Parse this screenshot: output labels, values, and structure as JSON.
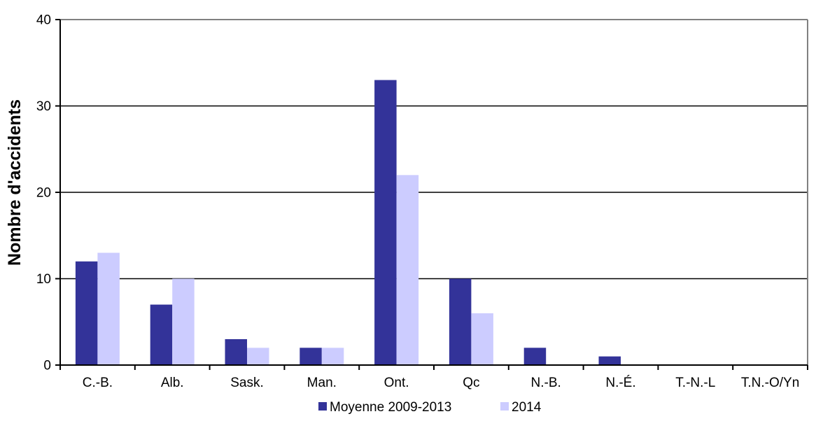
{
  "chart_data": {
    "type": "bar",
    "title": "",
    "xlabel": "",
    "ylabel": "Nombre d'accidents",
    "ylim": [
      0,
      40
    ],
    "yticks": [
      0,
      10,
      20,
      30,
      40
    ],
    "grid": true,
    "legend_position": "bottom",
    "categories": [
      "C.-B.",
      "Alb.",
      "Sask.",
      "Man.",
      "Ont.",
      "Qc",
      "N.-B.",
      "N.-É.",
      "T.-N.-L",
      "T.N.-O/Yn"
    ],
    "series": [
      {
        "name": "Moyenne 2009-2013",
        "color": "#333399",
        "values": [
          12,
          7,
          3,
          2,
          33,
          10,
          2,
          1,
          0,
          0
        ]
      },
      {
        "name": "2014",
        "color": "#CCCCFF",
        "values": [
          13,
          10,
          2,
          2,
          22,
          6,
          0,
          0,
          0,
          0
        ]
      }
    ],
    "colors": {
      "axis": "#000000",
      "gridline": "#000000",
      "plot_border": "#808080",
      "background": "#ffffff"
    }
  }
}
